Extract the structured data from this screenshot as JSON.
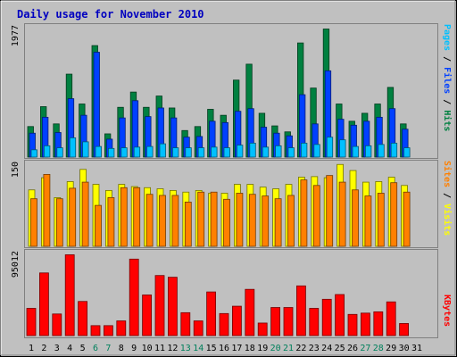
{
  "chart_data": [
    {
      "type": "bar",
      "title": "Daily usage for November 2010",
      "ymax_label": "1977",
      "ylabel_parts": [
        {
          "text": "Pages",
          "color": "#00c0ff"
        },
        {
          "text": " / ",
          "color": "#000000"
        },
        {
          "text": "Files",
          "color": "#0040ff"
        },
        {
          "text": " / ",
          "color": "#000000"
        },
        {
          "text": "Hits",
          "color": "#008040"
        }
      ],
      "series": [
        {
          "name": "Hits",
          "color": "#008040",
          "values": [
            460,
            760,
            500,
            1250,
            800,
            1680,
            350,
            750,
            980,
            750,
            920,
            740,
            400,
            460,
            720,
            630,
            1160,
            1400,
            660,
            470,
            380,
            1720,
            1040,
            1930,
            800,
            540,
            660,
            800,
            1050,
            500
          ]
        },
        {
          "name": "Files",
          "color": "#0040ff",
          "values": [
            360,
            600,
            370,
            880,
            630,
            1580,
            270,
            590,
            850,
            610,
            740,
            590,
            300,
            310,
            540,
            520,
            690,
            730,
            450,
            360,
            320,
            940,
            500,
            1300,
            570,
            480,
            540,
            600,
            730,
            420
          ]
        },
        {
          "name": "Pages",
          "color": "#00c0ff",
          "values": [
            110,
            170,
            140,
            290,
            230,
            160,
            130,
            140,
            150,
            160,
            200,
            140,
            140,
            140,
            150,
            140,
            180,
            210,
            150,
            170,
            140,
            210,
            190,
            300,
            260,
            160,
            170,
            190,
            210,
            140
          ]
        }
      ]
    },
    {
      "type": "bar",
      "ymax_label": "150",
      "ylabel_parts": [
        {
          "text": "Sites",
          "color": "#ff8000"
        },
        {
          "text": " / ",
          "color": "#000000"
        },
        {
          "text": "Visits",
          "color": "#ffff00"
        }
      ],
      "series": [
        {
          "name": "Visits",
          "color": "#ffff00",
          "values": [
            102,
            124,
            88,
            117,
            139,
            112,
            101,
            112,
            108,
            106,
            104,
            101,
            98,
            101,
            96,
            96,
            112,
            112,
            107,
            104,
            112,
            125,
            126,
            124,
            148,
            137,
            116,
            117,
            125,
            110
          ]
        },
        {
          "name": "Sites",
          "color": "#ff8000",
          "values": [
            86,
            130,
            86,
            105,
            116,
            74,
            88,
            106,
            106,
            94,
            92,
            92,
            80,
            98,
            98,
            85,
            96,
            94,
            91,
            86,
            92,
            120,
            110,
            128,
            116,
            102,
            91,
            96,
            115,
            98
          ]
        }
      ]
    },
    {
      "type": "bar",
      "ymax_label": "95012",
      "ylabel_parts": [
        {
          "text": "KBytes",
          "color": "#ff0000"
        }
      ],
      "series": [
        {
          "name": "KBytes",
          "color": "#ff0000",
          "values": [
            31500,
            72500,
            25000,
            93500,
            39500,
            11500,
            11500,
            17000,
            88500,
            47000,
            69500,
            67500,
            26500,
            17000,
            50500,
            25500,
            34000,
            53500,
            14500,
            32500,
            32500,
            57500,
            31500,
            42000,
            47500,
            24500,
            26000,
            27500,
            39000,
            14000
          ]
        }
      ],
      "x_ticks": [
        {
          "label": "1",
          "color": "#000000"
        },
        {
          "label": "2",
          "color": "#000000"
        },
        {
          "label": "3",
          "color": "#000000"
        },
        {
          "label": "4",
          "color": "#000000"
        },
        {
          "label": "5",
          "color": "#000000"
        },
        {
          "label": "6",
          "color": "#00805c"
        },
        {
          "label": "7",
          "color": "#00805c"
        },
        {
          "label": "8",
          "color": "#000000"
        },
        {
          "label": "9",
          "color": "#000000"
        },
        {
          "label": "10",
          "color": "#000000"
        },
        {
          "label": "11",
          "color": "#000000"
        },
        {
          "label": "12",
          "color": "#000000"
        },
        {
          "label": "13",
          "color": "#00805c"
        },
        {
          "label": "14",
          "color": "#00805c"
        },
        {
          "label": "15",
          "color": "#000000"
        },
        {
          "label": "16",
          "color": "#000000"
        },
        {
          "label": "17",
          "color": "#000000"
        },
        {
          "label": "18",
          "color": "#000000"
        },
        {
          "label": "19",
          "color": "#000000"
        },
        {
          "label": "20",
          "color": "#00805c"
        },
        {
          "label": "21",
          "color": "#00805c"
        },
        {
          "label": "22",
          "color": "#000000"
        },
        {
          "label": "23",
          "color": "#000000"
        },
        {
          "label": "24",
          "color": "#000000"
        },
        {
          "label": "25",
          "color": "#000000"
        },
        {
          "label": "26",
          "color": "#000000"
        },
        {
          "label": "27",
          "color": "#00805c"
        },
        {
          "label": "28",
          "color": "#00805c"
        },
        {
          "label": "29",
          "color": "#000000"
        },
        {
          "label": "30",
          "color": "#000000"
        },
        {
          "label": "31",
          "color": "#000000"
        }
      ]
    }
  ]
}
